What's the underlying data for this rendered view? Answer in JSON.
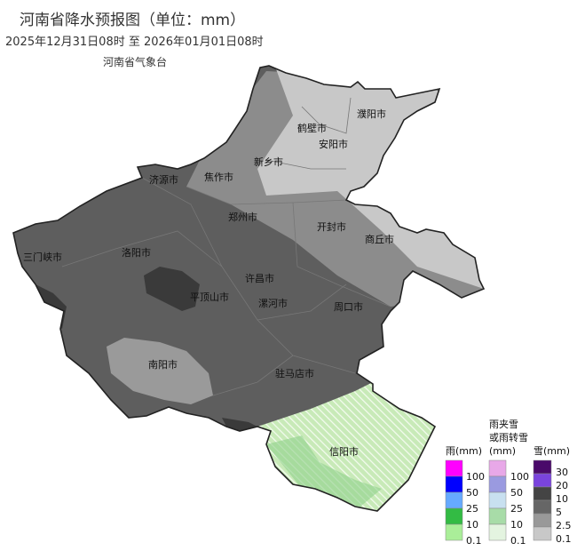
{
  "header": {
    "title": "河南省降水预报图（单位：mm）",
    "period": "2025年12月31日08时  至  2026年01月01日08时",
    "agency": "河南省气象台"
  },
  "cities": [
    "濮阳市",
    "鹤壁市",
    "安阳市",
    "新乡市",
    "济源市",
    "焦作市",
    "郑州市",
    "开封市",
    "商丘市",
    "三门峡市",
    "洛阳市",
    "许昌市",
    "平顶山市",
    "漯河市",
    "周口市",
    "南阳市",
    "驻马店市",
    "信阳市"
  ],
  "legend": {
    "rain": {
      "title": "雨(mm)",
      "levels": [
        "100",
        "50",
        "25",
        "10",
        "0.1"
      ],
      "colors": [
        "#ff00ff",
        "#0000ff",
        "#66aaff",
        "#33bb44",
        "#aaee99"
      ]
    },
    "mixed": {
      "title_line1": "雨夹雪",
      "title_line2": "或雨转雪",
      "title_line3": "(mm)",
      "levels": [
        "100",
        "50",
        "25",
        "10",
        "0.1"
      ],
      "colors": [
        "#e8a8e8",
        "#9a9ae0",
        "#c8e0f0",
        "#a8dca8",
        "#e4f4e0"
      ]
    },
    "snow": {
      "title": "雪(mm)",
      "levels": [
        "30",
        "20",
        "10",
        "5",
        "2.5",
        "0.1"
      ],
      "colors": [
        "#4a0a6a",
        "#7a44dd",
        "#444444",
        "#666666",
        "#999999",
        "#c8c8c8"
      ]
    }
  }
}
